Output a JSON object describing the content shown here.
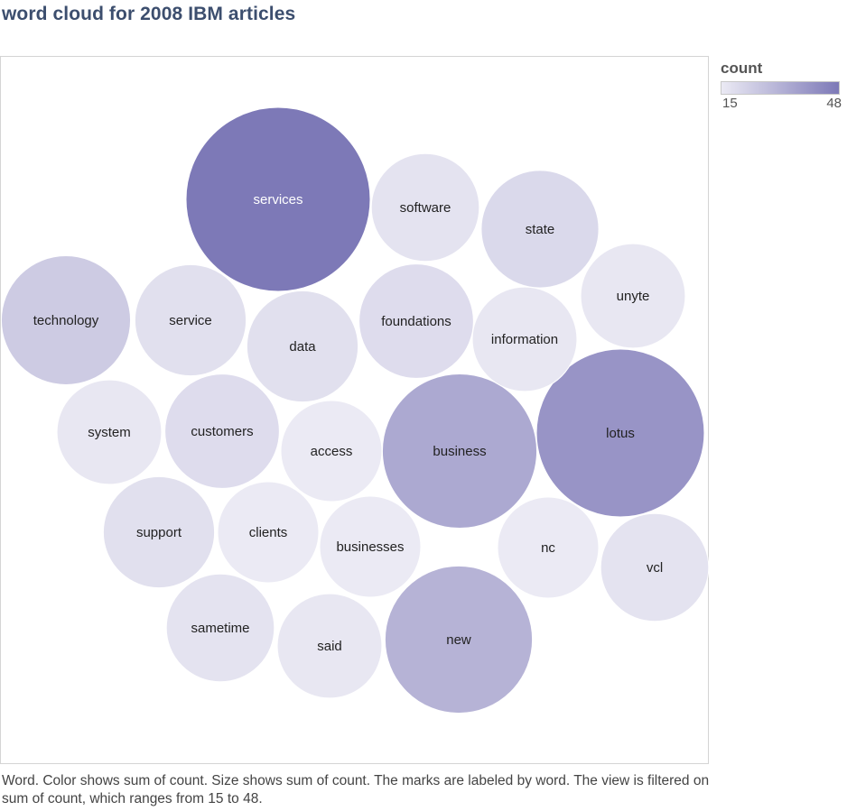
{
  "title": "word cloud for 2008 IBM articles",
  "legend": {
    "title": "count",
    "min_label": "15",
    "max_label": "48",
    "color_low": "#ebeaf4",
    "color_high": "#7d79b7"
  },
  "caption": "Word.  Color shows sum of count.  Size shows sum of count.  The marks are labeled by word. The view is filtered on sum of count, which ranges from 15 to 48.",
  "chart_data": {
    "type": "bubble",
    "color_encoding": "sum of count",
    "size_encoding": "sum of count",
    "count_range": [
      15,
      48
    ],
    "words": [
      {
        "word": "services",
        "count": 48
      },
      {
        "word": "lotus",
        "count": 40
      },
      {
        "word": "business",
        "count": 34
      },
      {
        "word": "new",
        "count": 31
      },
      {
        "word": "technology",
        "count": 24
      },
      {
        "word": "state",
        "count": 20
      },
      {
        "word": "foundations",
        "count": 19
      },
      {
        "word": "customers",
        "count": 19
      },
      {
        "word": "data",
        "count": 18
      },
      {
        "word": "service",
        "count": 18
      },
      {
        "word": "software",
        "count": 17
      },
      {
        "word": "support",
        "count": 18
      },
      {
        "word": "unyte",
        "count": 16
      },
      {
        "word": "information",
        "count": 16
      },
      {
        "word": "system",
        "count": 16
      },
      {
        "word": "vcl",
        "count": 17
      },
      {
        "word": "sametime",
        "count": 17
      },
      {
        "word": "said",
        "count": 16
      },
      {
        "word": "nc",
        "count": 15
      },
      {
        "word": "businesses",
        "count": 15
      },
      {
        "word": "access",
        "count": 15
      },
      {
        "word": "clients",
        "count": 15
      }
    ]
  }
}
